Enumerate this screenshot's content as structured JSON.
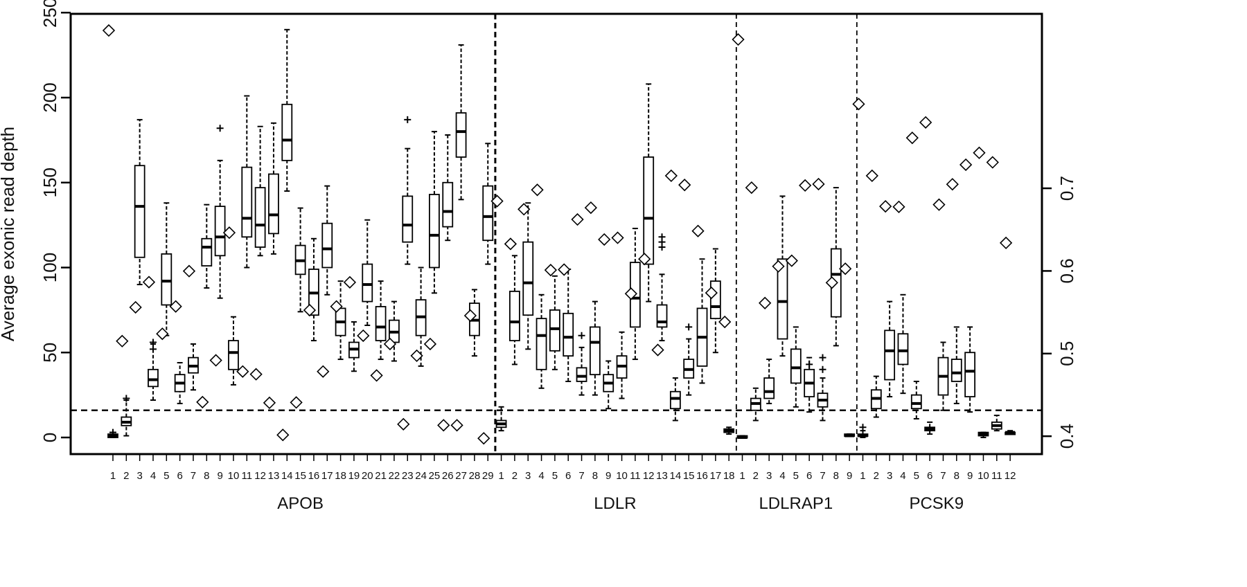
{
  "chart_data": {
    "type": "box",
    "ylabel": "Average exonic read depth",
    "ylim": [
      -10,
      250
    ],
    "yticks": [
      0,
      50,
      100,
      150,
      200,
      250
    ],
    "y2ticks": [
      "0.4",
      "0.5",
      "0.6",
      "0.7"
    ],
    "y2tick_values": [
      0.4,
      0.5,
      0.6,
      0.7
    ],
    "y2_to_left": {
      "intercept": -193.75,
      "slope": 486.25
    },
    "threshold": 16,
    "genes": [
      {
        "name": "APOB",
        "boxes": [
          [
            0,
            0,
            1,
            2,
            3
          ],
          [
            1,
            7,
            9,
            12,
            22
          ],
          [
            90,
            106,
            136,
            160,
            187
          ],
          [
            22,
            30,
            34,
            40,
            55
          ],
          [
            60,
            78,
            92,
            108,
            138
          ],
          [
            20,
            27,
            32,
            37,
            44
          ],
          [
            28,
            38,
            42,
            47,
            55
          ],
          [
            88,
            101,
            112,
            117,
            137
          ],
          [
            82,
            107,
            118,
            136,
            163
          ],
          [
            31,
            40,
            50,
            57,
            71
          ],
          [
            100,
            118,
            129,
            159,
            201
          ],
          [
            107,
            112,
            125,
            147,
            183
          ],
          [
            108,
            120,
            131,
            155,
            185
          ],
          [
            145,
            163,
            175,
            196,
            240
          ],
          [
            74,
            96,
            104,
            113,
            135
          ],
          [
            57,
            72,
            85,
            99,
            117
          ],
          [
            84,
            100,
            111,
            126,
            148
          ],
          [
            46,
            60,
            68,
            76,
            92
          ],
          [
            39,
            47,
            52,
            56,
            68
          ],
          [
            66,
            80,
            90,
            102,
            128
          ],
          [
            46,
            57,
            65,
            77,
            92
          ],
          [
            45,
            56,
            62,
            69,
            80
          ],
          [
            102,
            115,
            125,
            142,
            170
          ],
          [
            42,
            60,
            71,
            81,
            100
          ],
          [
            85,
            100,
            119,
            143,
            180
          ],
          [
            116,
            124,
            133,
            150,
            178
          ],
          [
            140,
            165,
            180,
            191,
            231
          ],
          [
            48,
            60,
            69,
            79,
            87
          ],
          [
            102,
            116,
            130,
            148,
            173
          ]
        ],
        "outliers": [
          [
            1,
            3
          ],
          [
            2,
            23
          ],
          [
            4,
            52
          ],
          [
            4,
            56
          ],
          [
            9,
            182
          ],
          [
            23,
            187
          ]
        ],
        "diamonds": [
          239.5,
          56.7,
          76.6,
          91.4,
          61,
          77.1,
          97.9,
          20.8,
          45.4,
          120.5,
          38.8,
          37.2,
          20.4,
          1.5,
          20.6,
          74.9,
          38.8,
          77.1,
          91.3,
          59.9,
          36.5,
          55,
          7.8,
          48.1,
          55,
          7.2,
          7.2,
          71.7,
          -0.5
        ]
      },
      {
        "name": "LDLR",
        "boxes": [
          [
            4,
            6,
            8,
            10,
            18
          ],
          [
            43,
            57,
            68,
            86,
            107
          ],
          [
            52,
            72,
            91,
            115,
            138
          ],
          [
            29,
            40,
            60,
            70,
            84
          ],
          [
            40,
            51,
            64,
            75,
            95
          ],
          [
            33,
            48,
            59,
            73,
            99
          ],
          [
            25,
            33,
            36,
            41,
            53
          ],
          [
            25,
            37,
            56,
            65,
            80
          ],
          [
            17,
            27,
            32,
            37,
            45
          ],
          [
            23,
            35,
            42,
            48,
            62
          ],
          [
            46,
            65,
            82,
            103,
            123
          ],
          [
            80,
            102,
            129,
            165,
            208
          ],
          [
            57,
            65,
            68,
            78,
            96
          ],
          [
            10,
            17,
            23,
            27,
            35
          ],
          [
            25,
            35,
            40,
            46,
            58
          ],
          [
            32,
            42,
            59,
            76,
            105
          ],
          [
            50,
            70,
            77,
            92,
            111
          ],
          [
            2,
            3,
            4,
            5,
            6
          ]
        ],
        "outliers": [
          [
            7,
            60
          ],
          [
            13,
            112
          ],
          [
            13,
            115
          ],
          [
            13,
            118
          ],
          [
            15,
            65
          ]
        ],
        "diamonds": [
          139.1,
          113.9,
          134.3,
          145.7,
          98.5,
          98.8,
          128.3,
          135.2,
          116.5,
          117.5,
          84.6,
          105,
          51.5,
          154,
          148.6,
          121.5,
          85.1,
          68
        ]
      },
      {
        "name": "LDLRAP1",
        "boxes": [
          [
            0,
            0,
            0,
            1,
            1
          ],
          [
            10,
            16,
            20,
            23,
            29
          ],
          [
            20,
            23,
            27,
            35,
            46
          ],
          [
            48,
            58,
            80,
            105,
            142
          ],
          [
            18,
            32,
            41,
            52,
            65
          ],
          [
            15,
            24,
            32,
            40,
            47
          ],
          [
            10,
            18,
            22,
            26,
            35
          ],
          [
            54,
            71,
            96,
            111,
            147
          ],
          [
            1,
            1,
            1,
            2,
            2
          ]
        ],
        "outliers": [
          [
            7,
            40
          ],
          [
            7,
            47
          ],
          [
            6,
            43
          ]
        ],
        "diamonds": [
          234.2,
          147,
          79.1,
          100.7,
          104,
          148.3,
          149.1,
          91.1,
          99.3
        ]
      },
      {
        "name": "PCSK9",
        "boxes": [
          [
            0,
            1,
            1,
            2,
            4
          ],
          [
            12,
            17,
            23,
            28,
            36
          ],
          [
            24,
            34,
            51,
            63,
            80
          ],
          [
            26,
            43,
            51,
            61,
            84
          ],
          [
            11,
            17,
            20,
            25,
            33
          ],
          [
            2,
            4,
            5,
            6,
            9
          ],
          [
            16,
            25,
            36,
            47,
            56
          ],
          [
            20,
            33,
            38,
            46,
            65
          ],
          [
            15,
            24,
            39,
            50,
            65
          ],
          [
            0,
            1,
            2,
            3,
            3
          ],
          [
            4,
            5,
            7,
            9,
            13
          ],
          [
            2,
            2,
            3,
            3,
            4
          ]
        ],
        "outliers": [
          [
            1,
            6
          ]
        ],
        "diamonds": [
          196.2,
          154,
          136,
          135.7,
          176.3,
          185.4,
          137,
          149,
          160.5,
          167.5,
          161.9,
          114.5
        ]
      }
    ]
  }
}
